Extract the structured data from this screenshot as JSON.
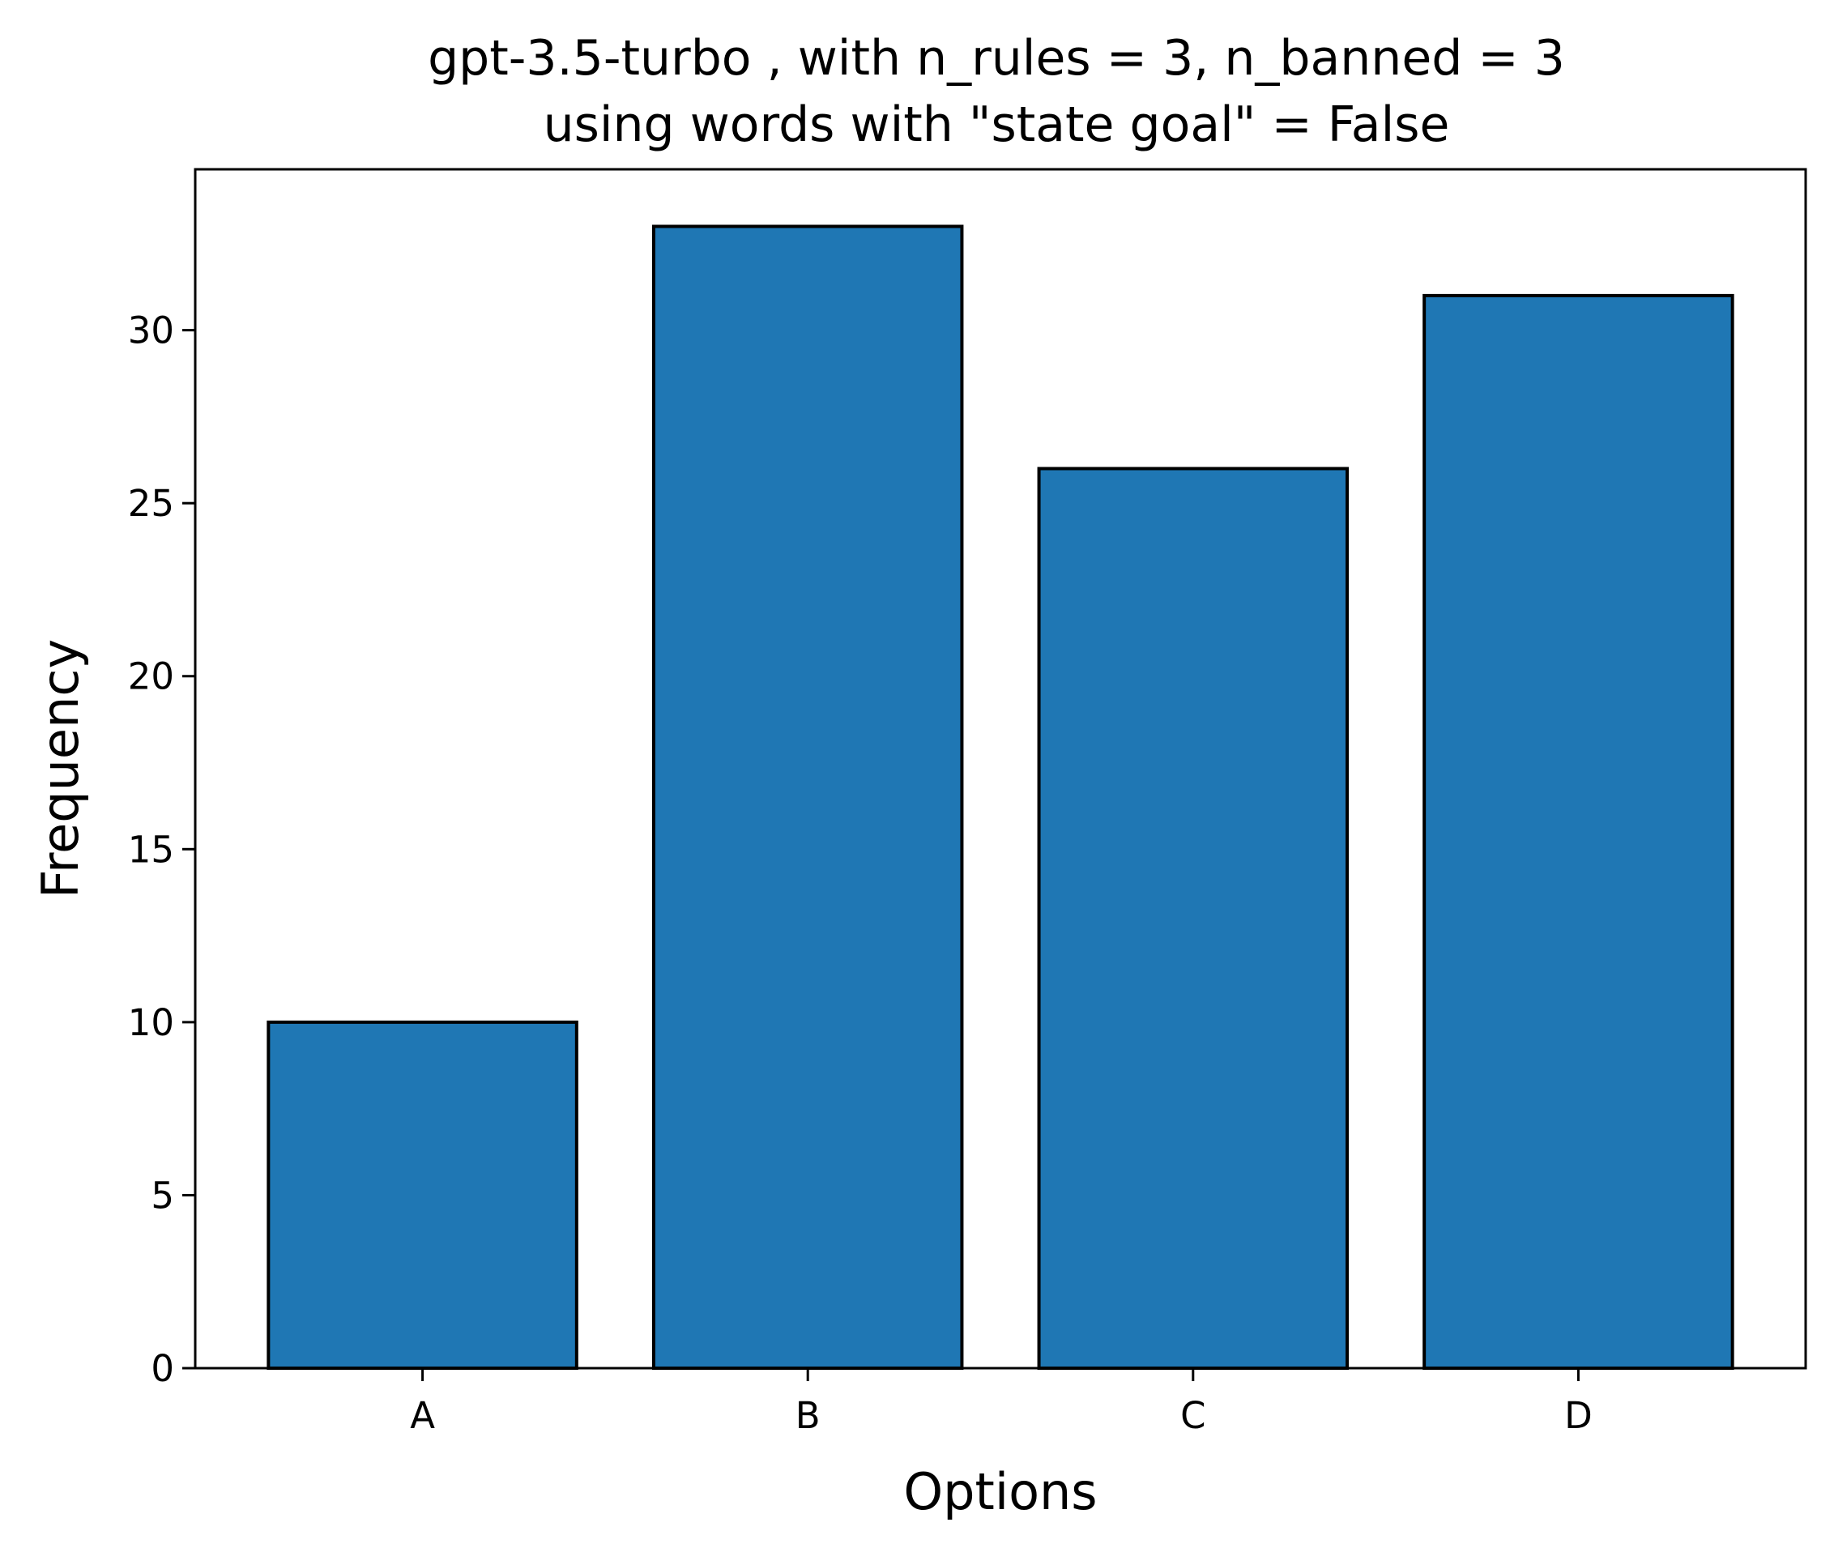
{
  "chart_data": {
    "type": "bar",
    "title": [
      "gpt-3.5-turbo , with n_rules = 3, n_banned = 3",
      "using words with \"state goal\" = False"
    ],
    "xlabel": "Options",
    "ylabel": "Frequency",
    "categories": [
      "A",
      "B",
      "C",
      "D"
    ],
    "values": [
      10,
      33,
      26,
      31
    ],
    "yticks": [
      0,
      5,
      10,
      15,
      20,
      25,
      30
    ],
    "ylim": [
      0,
      34.65
    ],
    "grid": false,
    "bar_color": "#1f77b4",
    "edge_color": "#000000"
  }
}
